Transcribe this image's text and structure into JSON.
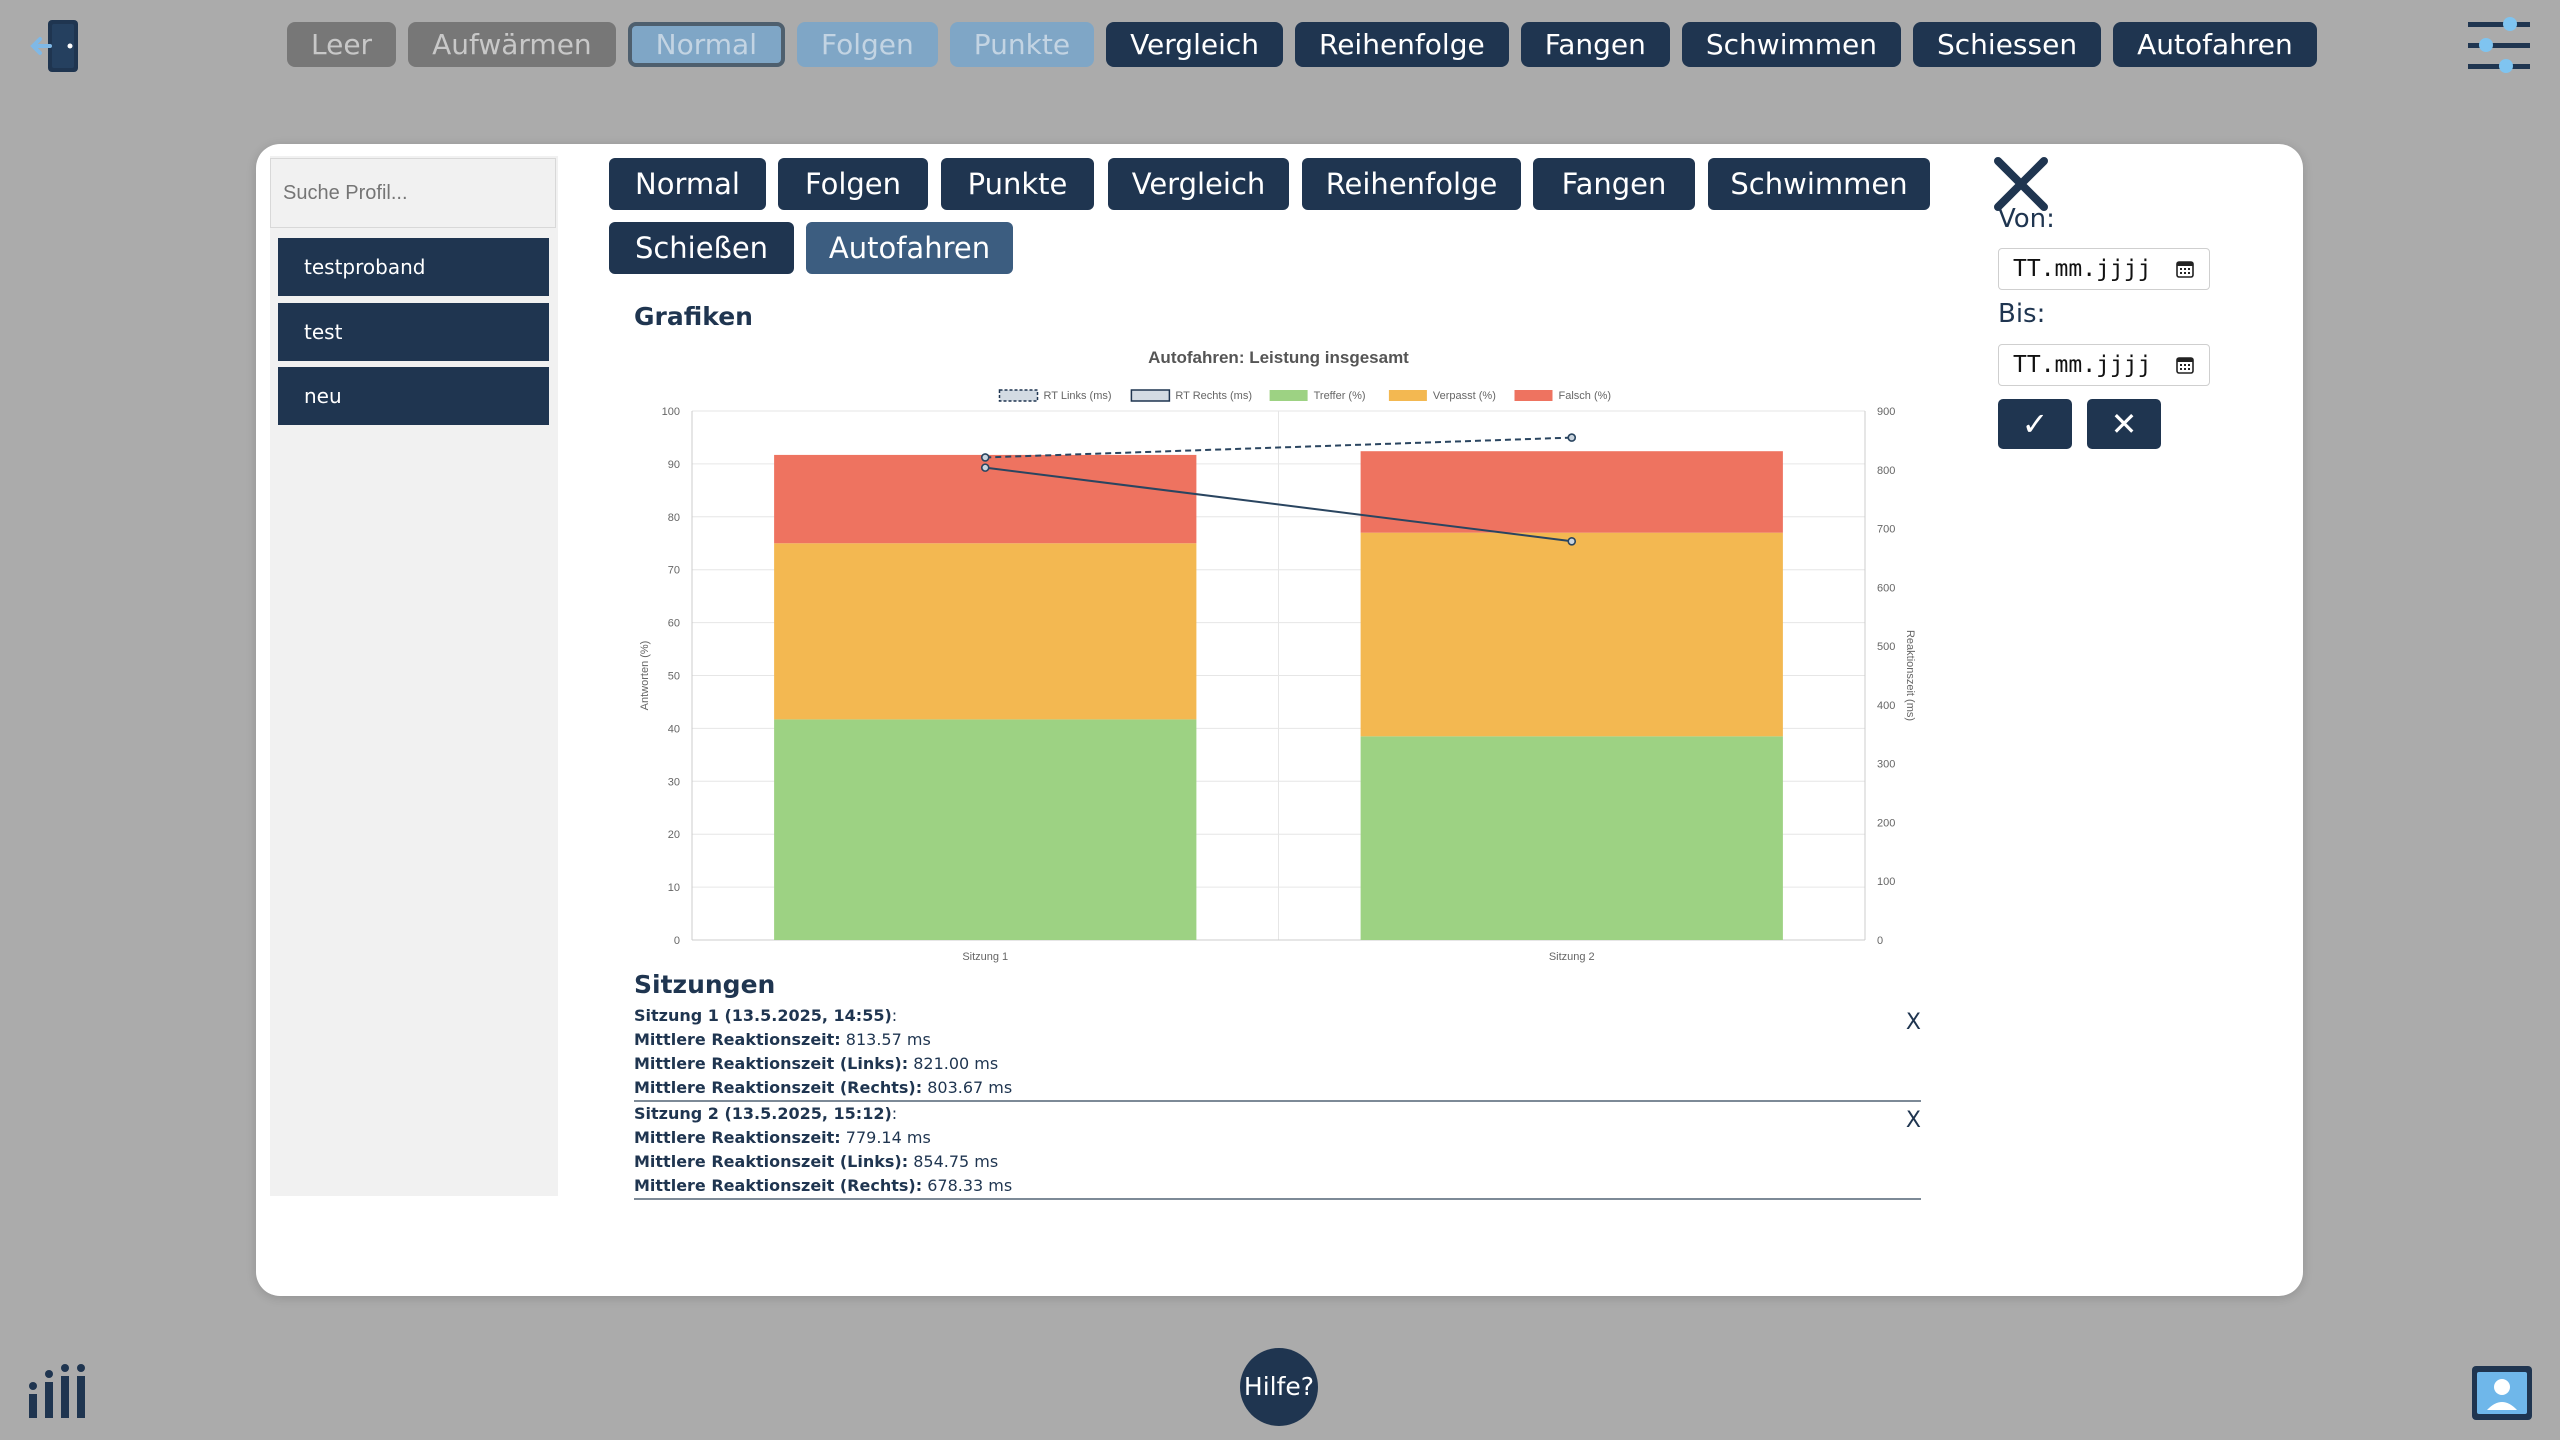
{
  "topnav": [
    "Leer",
    "Aufwärmen",
    "Normal",
    "Folgen",
    "Punkte",
    "Vergleich",
    "Reihenfolge",
    "Fangen",
    "Schwimmen",
    "Schiessen",
    "Autofahren"
  ],
  "modal": {
    "search_placeholder": "Suche Profil...",
    "profiles": [
      "testproband",
      "test",
      "neu"
    ],
    "game_buttons": [
      "Normal",
      "Folgen",
      "Punkte",
      "Vergleich",
      "Reihenfolge",
      "Fangen",
      "Schwimmen",
      "Schießen",
      "Autofahren"
    ],
    "selected_game": "Autofahren",
    "charts_heading": "Grafiken",
    "sessions_heading": "Sitzungen",
    "von_label": "Von:",
    "bis_label": "Bis:",
    "von_value": "TT.mm.jjjj",
    "bis_value": "TT.mm.jjjj",
    "confirm_label": "✓",
    "clear_label": "✕"
  },
  "sessions": [
    {
      "title": "Sitzung 1 (13.5.2025, 14:55)",
      "title_suffix": ":",
      "mean_label": "Mittlere Reaktionszeit:",
      "mean": "813.57 ms",
      "left_label": "Mittlere Reaktionszeit (Links):",
      "left": "821.00 ms",
      "right_label": "Mittlere Reaktionszeit (Rechts):",
      "right": "803.67 ms",
      "delete": "X"
    },
    {
      "title": "Sitzung 2 (13.5.2025, 15:12)",
      "title_suffix": ":",
      "mean_label": "Mittlere Reaktionszeit:",
      "mean": "779.14 ms",
      "left_label": "Mittlere Reaktionszeit (Links):",
      "left": "854.75 ms",
      "right_label": "Mittlere Reaktionszeit (Rechts):",
      "right": "678.33 ms",
      "delete": "X"
    }
  ],
  "help_label": "Hilfe?",
  "colors": {
    "primary": "#1f3550",
    "treffer": "#9dd283",
    "verpasst": "#f3b851",
    "falsch": "#ee7360"
  },
  "chart_data": {
    "type": "bar",
    "stacked": true,
    "title": "Autofahren: Leistung insgesamt",
    "categories": [
      "Sitzung 1",
      "Sitzung 2"
    ],
    "ylabel": "Antworten (%)",
    "ylabel_right": "Reaktionszeit (ms)",
    "ylim": [
      0,
      100
    ],
    "ylim_right": [
      0,
      900
    ],
    "yticks": [
      0,
      10,
      20,
      30,
      40,
      50,
      60,
      70,
      80,
      90,
      100
    ],
    "yticks_right": [
      0,
      100,
      200,
      300,
      400,
      500,
      600,
      700,
      800,
      900
    ],
    "legend_position": "top",
    "grid": true,
    "series": [
      {
        "name": "RT Links (ms)",
        "type": "line",
        "axis": "right",
        "dashed": true,
        "values": [
          821.0,
          854.75
        ]
      },
      {
        "name": "RT Rechts (ms)",
        "type": "line",
        "axis": "right",
        "dashed": false,
        "values": [
          803.67,
          678.33
        ]
      },
      {
        "name": "Treffer (%)",
        "type": "bar",
        "axis": "left",
        "values": [
          41.7,
          38.5
        ]
      },
      {
        "name": "Verpasst (%)",
        "type": "bar",
        "axis": "left",
        "values": [
          33.3,
          38.5
        ]
      },
      {
        "name": "Falsch (%)",
        "type": "bar",
        "axis": "left",
        "values": [
          16.7,
          15.4
        ]
      }
    ]
  }
}
